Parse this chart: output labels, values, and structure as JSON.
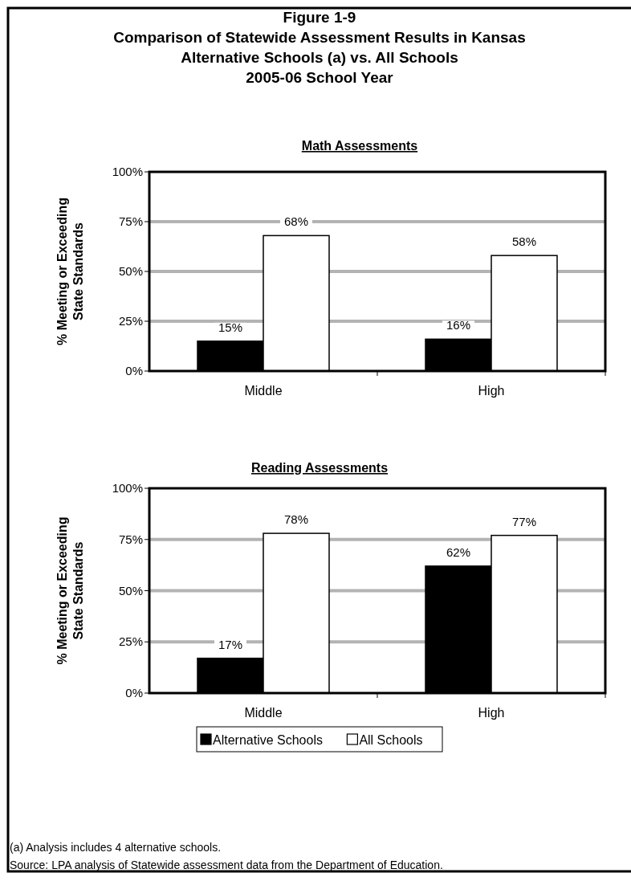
{
  "chart_data": [
    {
      "type": "bar",
      "title": "Figure 1-9\nComparison of Statewide Assessment Results in Kansas\nAlternative Schools (a)  vs. All Schools\n2005-06 School Year",
      "subtitle": "Math Assessments",
      "ylabel": "% Meeting or Exceeding\nState Standards",
      "categories": [
        "Middle",
        "High"
      ],
      "series": [
        {
          "color": "#000000",
          "values": [
            15,
            16
          ],
          "value_labels": [
            "15%",
            "16%"
          ]
        },
        {
          "color": "#ffffff",
          "values": [
            68,
            58
          ],
          "value_labels": [
            "68%",
            "58%"
          ]
        }
      ],
      "ylim": [
        0,
        100
      ],
      "yticks": [
        {
          "value": 0,
          "label": "0%"
        },
        {
          "value": 25,
          "label": "25%"
        },
        {
          "value": 50,
          "label": "50%"
        },
        {
          "value": 75,
          "label": "75%"
        },
        {
          "value": 100,
          "label": "100%"
        }
      ],
      "grid": "y",
      "legend": false
    },
    {
      "type": "bar",
      "title": "Reading Assessments",
      "ylabel": "% Meeting or Exceeding\nState Standards",
      "categories": [
        "Middle",
        "High"
      ],
      "series": [
        {
          "name": "Alternative Schools",
          "color": "#000000",
          "values": [
            17,
            62
          ],
          "value_labels": [
            "17%",
            "62%"
          ]
        },
        {
          "name": "All Schools",
          "color": "#ffffff",
          "values": [
            78,
            77
          ],
          "value_labels": [
            "78%",
            "77%"
          ]
        }
      ],
      "ylim": [
        0,
        100
      ],
      "yticks": [
        {
          "value": 0,
          "label": "0%"
        },
        {
          "value": 25,
          "label": "25%"
        },
        {
          "value": 50,
          "label": "50%"
        },
        {
          "value": 75,
          "label": "75%"
        },
        {
          "value": 100,
          "label": "100%"
        }
      ],
      "grid": "y",
      "legend": "bottom",
      "annotations": [
        "(a)  Analysis includes 4 alternative schools.",
        "Source: LPA analysis of Statewide assessment data from the Department of Education."
      ]
    }
  ]
}
